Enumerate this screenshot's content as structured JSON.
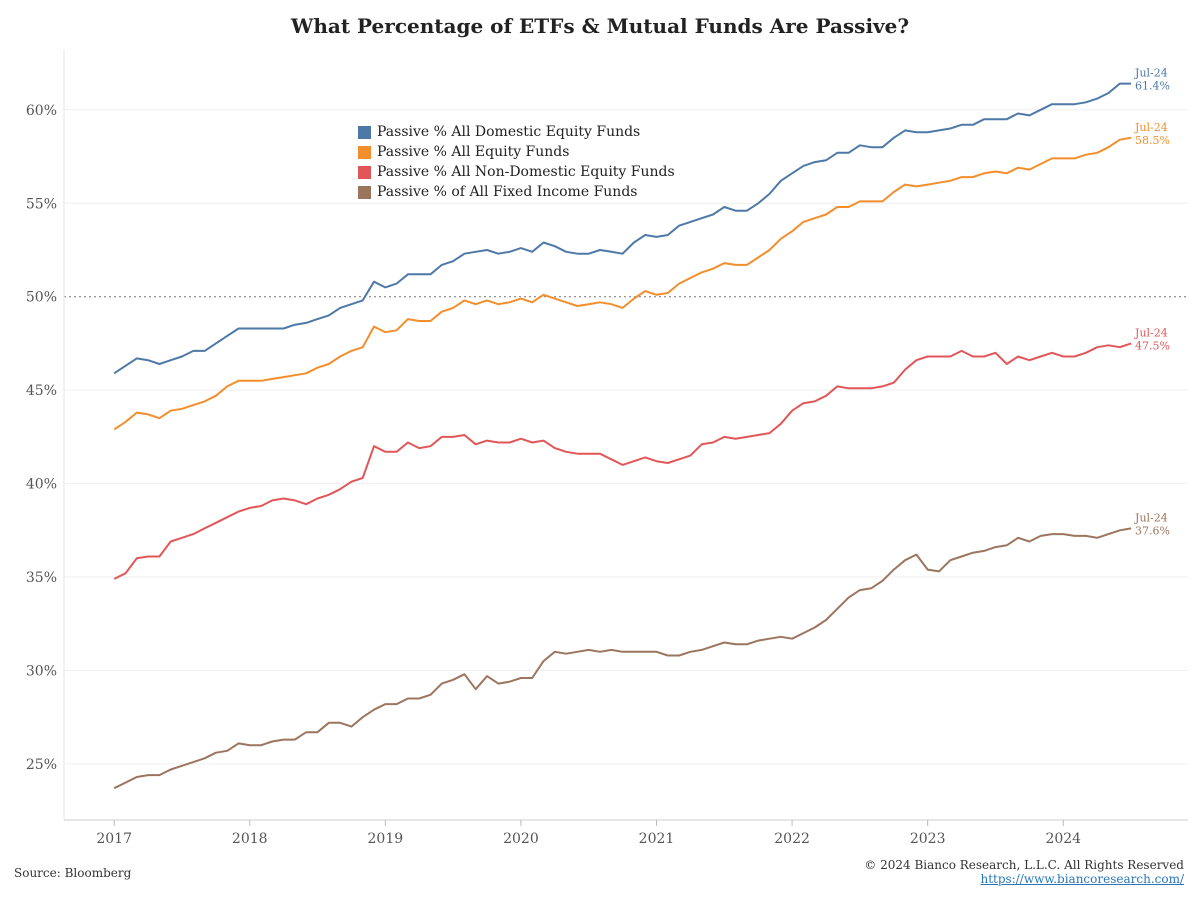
{
  "title": "What Percentage of ETFs & Mutual Funds Are Passive?",
  "footer": {
    "source": "Source: Bloomberg",
    "copyright": "© 2024 Bianco Research, L.L.C. All Rights Reserved",
    "url": "https://www.biancoresearch.com/"
  },
  "chart_data": {
    "type": "line",
    "title": "What Percentage of ETFs & Mutual Funds Are Passive?",
    "xlabel": "",
    "ylabel": "",
    "x_ticks": [
      "2017",
      "2018",
      "2019",
      "2020",
      "2021",
      "2022",
      "2023",
      "2024"
    ],
    "y_ticks": [
      "25%",
      "30%",
      "35%",
      "40%",
      "45%",
      "50%",
      "55%",
      "60%"
    ],
    "ylim": [
      22.0,
      63.2
    ],
    "xlim": [
      2016.63,
      2024.92
    ],
    "grid": true,
    "reference_line": 50,
    "legend_position": "top-center",
    "x_start": "2017-01",
    "x_end": "2024-07",
    "series": [
      {
        "name": "Passive % All Domestic Equity Funds",
        "color": "#4e79a7",
        "end_label": "Jul-24",
        "end_value_label": "61.4%",
        "values": [
          45.9,
          46.3,
          46.7,
          46.6,
          46.4,
          46.6,
          46.8,
          47.1,
          47.1,
          47.5,
          47.9,
          48.3,
          48.3,
          48.3,
          48.3,
          48.3,
          48.5,
          48.6,
          48.8,
          49.0,
          49.4,
          49.6,
          49.8,
          50.8,
          50.5,
          50.7,
          51.2,
          51.2,
          51.2,
          51.7,
          51.9,
          52.3,
          52.4,
          52.5,
          52.3,
          52.4,
          52.6,
          52.4,
          52.9,
          52.7,
          52.4,
          52.3,
          52.3,
          52.5,
          52.4,
          52.3,
          52.9,
          53.3,
          53.2,
          53.3,
          53.8,
          54.0,
          54.2,
          54.4,
          54.8,
          54.6,
          54.6,
          55.0,
          55.5,
          56.2,
          56.6,
          57.0,
          57.2,
          57.3,
          57.7,
          57.7,
          58.1,
          58.0,
          58.0,
          58.5,
          58.9,
          58.8,
          58.8,
          58.9,
          59.0,
          59.2,
          59.2,
          59.5,
          59.5,
          59.5,
          59.8,
          59.7,
          60.0,
          60.3,
          60.3,
          60.3,
          60.4,
          60.6,
          60.9,
          61.4,
          61.4
        ]
      },
      {
        "name": "Passive % All Equity Funds",
        "color": "#f28e2b",
        "end_label": "Jul-24",
        "end_value_label": "58.5%",
        "values": [
          42.9,
          43.3,
          43.8,
          43.7,
          43.5,
          43.9,
          44.0,
          44.2,
          44.4,
          44.7,
          45.2,
          45.5,
          45.5,
          45.5,
          45.6,
          45.7,
          45.8,
          45.9,
          46.2,
          46.4,
          46.8,
          47.1,
          47.3,
          48.4,
          48.1,
          48.2,
          48.8,
          48.7,
          48.7,
          49.2,
          49.4,
          49.8,
          49.6,
          49.8,
          49.6,
          49.7,
          49.9,
          49.7,
          50.1,
          49.9,
          49.7,
          49.5,
          49.6,
          49.7,
          49.6,
          49.4,
          49.9,
          50.3,
          50.1,
          50.2,
          50.7,
          51.0,
          51.3,
          51.5,
          51.8,
          51.7,
          51.7,
          52.1,
          52.5,
          53.1,
          53.5,
          54.0,
          54.2,
          54.4,
          54.8,
          54.8,
          55.1,
          55.1,
          55.1,
          55.6,
          56.0,
          55.9,
          56.0,
          56.1,
          56.2,
          56.4,
          56.4,
          56.6,
          56.7,
          56.6,
          56.9,
          56.8,
          57.1,
          57.4,
          57.4,
          57.4,
          57.6,
          57.7,
          58.0,
          58.4,
          58.5
        ]
      },
      {
        "name": "Passive % All Non-Domestic Equity Funds",
        "color": "#e15759",
        "end_label": "Jul-24",
        "end_value_label": "47.5%",
        "values": [
          34.9,
          35.2,
          36.0,
          36.1,
          36.1,
          36.9,
          37.1,
          37.3,
          37.6,
          37.9,
          38.2,
          38.5,
          38.7,
          38.8,
          39.1,
          39.2,
          39.1,
          38.9,
          39.2,
          39.4,
          39.7,
          40.1,
          40.3,
          42.0,
          41.7,
          41.7,
          42.2,
          41.9,
          42.0,
          42.5,
          42.5,
          42.6,
          42.1,
          42.3,
          42.2,
          42.2,
          42.4,
          42.2,
          42.3,
          41.9,
          41.7,
          41.6,
          41.6,
          41.6,
          41.3,
          41.0,
          41.2,
          41.4,
          41.2,
          41.1,
          41.3,
          41.5,
          42.1,
          42.2,
          42.5,
          42.4,
          42.5,
          42.6,
          42.7,
          43.2,
          43.9,
          44.3,
          44.4,
          44.7,
          45.2,
          45.1,
          45.1,
          45.1,
          45.2,
          45.4,
          46.1,
          46.6,
          46.8,
          46.8,
          46.8,
          47.1,
          46.8,
          46.8,
          47.0,
          46.4,
          46.8,
          46.6,
          46.8,
          47.0,
          46.8,
          46.8,
          47.0,
          47.3,
          47.4,
          47.3,
          47.5
        ]
      },
      {
        "name": "Passive % of All Fixed Income Funds",
        "color": "#9c755f",
        "end_label": "Jul-24",
        "end_value_label": "37.6%",
        "values": [
          23.7,
          24.0,
          24.3,
          24.4,
          24.4,
          24.7,
          24.9,
          25.1,
          25.3,
          25.6,
          25.7,
          26.1,
          26.0,
          26.0,
          26.2,
          26.3,
          26.3,
          26.7,
          26.7,
          27.2,
          27.2,
          27.0,
          27.5,
          27.9,
          28.2,
          28.2,
          28.5,
          28.5,
          28.7,
          29.3,
          29.5,
          29.8,
          29.0,
          29.7,
          29.3,
          29.4,
          29.6,
          29.6,
          30.5,
          31.0,
          30.9,
          31.0,
          31.1,
          31.0,
          31.1,
          31.0,
          31.0,
          31.0,
          31.0,
          30.8,
          30.8,
          31.0,
          31.1,
          31.3,
          31.5,
          31.4,
          31.4,
          31.6,
          31.7,
          31.8,
          31.7,
          32.0,
          32.3,
          32.7,
          33.3,
          33.9,
          34.3,
          34.4,
          34.8,
          35.4,
          35.9,
          36.2,
          35.4,
          35.3,
          35.9,
          36.1,
          36.3,
          36.4,
          36.6,
          36.7,
          37.1,
          36.9,
          37.2,
          37.3,
          37.3,
          37.2,
          37.2,
          37.1,
          37.3,
          37.5,
          37.6
        ]
      }
    ]
  }
}
